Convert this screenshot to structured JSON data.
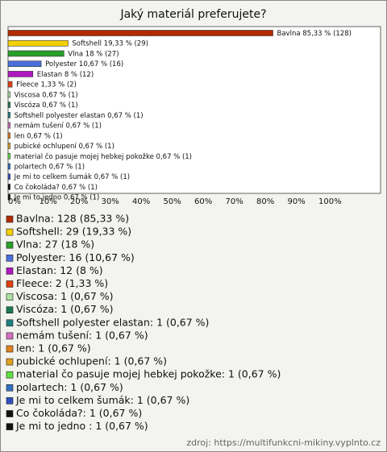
{
  "chart_data": {
    "type": "bar",
    "orientation": "horizontal",
    "title": "Jaký materiál preferujete?",
    "categories": [
      "Bavlna",
      "Softshell",
      "Vlna",
      "Polyester",
      "Elastan",
      "Fleece",
      "Viscosa",
      "Viscóza",
      "Softshell polyester elastan",
      "nemám tušení",
      "len",
      "pubické ochlupení",
      "material čo pasuje mojej hebkej pokožke",
      "polartech",
      "Je mi to celkem šumák",
      "Co čokoláda?",
      "Je mi to jedno"
    ],
    "values": [
      85.33,
      19.33,
      18,
      10.67,
      8,
      1.33,
      0.67,
      0.67,
      0.67,
      0.67,
      0.67,
      0.67,
      0.67,
      0.67,
      0.67,
      0.67,
      0.67
    ],
    "value_labels": [
      "85,33 % (128)",
      "19,33 % (29)",
      "18 % (27)",
      "10,67 % (16)",
      "8 % (12)",
      "1,33 % (2)",
      "0,67 % (1)",
      "0,67 % (1)",
      "0,67 % (1)",
      "0,67 % (1)",
      "0,67 % (1)",
      "0,67 % (1)",
      "0,67 % (1)",
      "0,67 % (1)",
      "0,67 % (1)",
      "0,67 % (1)",
      "0,67 % (1)"
    ],
    "legend_labels": [
      "Bavlna: 128 (85,33 %)",
      "Softshell: 29 (19,33 %)",
      "Vlna: 27 (18 %)",
      "Polyester: 16 (10,67 %)",
      "Elastan: 12 (8 %)",
      "Fleece: 2 (1,33 %)",
      "Viscosa: 1 (0,67 %)",
      "Viscóza: 1 (0,67 %)",
      "Softshell polyester elastan: 1 (0,67 %)",
      "nemám tušení: 1 (0,67 %)",
      "len: 1 (0,67 %)",
      "pubické ochlupení: 1 (0,67 %)",
      "material čo pasuje mojej hebkej pokožke: 1 (0,67 %)",
      "polartech: 1 (0,67 %)",
      "Je mi to celkem šumák: 1 (0,67 %)",
      "Co čokoláda?: 1 (0,67 %)",
      "Je mi to jedno : 1 (0,67 %)"
    ],
    "colors": [
      "#b22a00",
      "#f5d000",
      "#2a9e2a",
      "#4a6fdc",
      "#b018c0",
      "#e04010",
      "#a8e0a0",
      "#1a7a50",
      "#208080",
      "#d070c0",
      "#e08020",
      "#e0a020",
      "#60e040",
      "#3070c0",
      "#3050c0",
      "#111111",
      "#111111"
    ],
    "xlim": [
      0,
      120
    ],
    "xticks": [
      {
        "value": 0,
        "label": "0%"
      },
      {
        "value": 10,
        "label": "10%"
      },
      {
        "value": 20,
        "label": "20%"
      },
      {
        "value": 30,
        "label": "30%"
      },
      {
        "value": 40,
        "label": "40%"
      },
      {
        "value": 50,
        "label": "50%"
      },
      {
        "value": 60,
        "label": "60%"
      },
      {
        "value": 70,
        "label": "70%"
      },
      {
        "value": 80,
        "label": "80%"
      },
      {
        "value": 90,
        "label": "90%"
      },
      {
        "value": 100,
        "label": "100%"
      }
    ],
    "source": "zdroj: https://multifunkcni-mikiny.vyplnto.cz"
  }
}
